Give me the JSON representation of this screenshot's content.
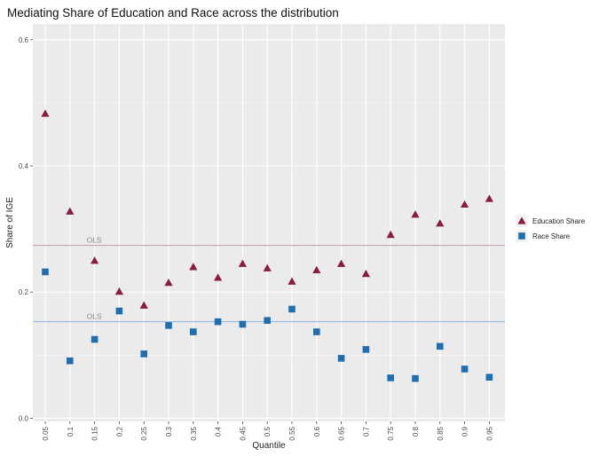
{
  "chart_data": {
    "type": "scatter",
    "title": "Mediating Share of Education and Race across the distribution",
    "xlabel": "Quantile",
    "ylabel": "Share of IGE",
    "ylim": [
      -0.005,
      0.625
    ],
    "yticks": [
      0.0,
      0.2,
      0.4,
      0.6
    ],
    "ytick_labels": [
      "0.0",
      "0.2",
      "0.4",
      "0.6"
    ],
    "categories": [
      "0.05",
      "0.1",
      "0.15",
      "0.2",
      "0.25",
      "0.3",
      "0.35",
      "0.4",
      "0.45",
      "0.5",
      "0.55",
      "0.6",
      "0.65",
      "0.7",
      "0.75",
      "0.8",
      "0.85",
      "0.9",
      "0.95"
    ],
    "grid": true,
    "legend_position": "right",
    "series": [
      {
        "name": "Education Share",
        "marker": "triangle",
        "color": "#8b1a44",
        "values": [
          0.483,
          0.328,
          0.25,
          0.201,
          0.179,
          0.215,
          0.24,
          0.223,
          0.245,
          0.238,
          0.217,
          0.235,
          0.245,
          0.229,
          0.291,
          0.323,
          0.309,
          0.339,
          0.348
        ]
      },
      {
        "name": "Race Share",
        "marker": "square",
        "color": "#1f6fb0",
        "values": [
          0.232,
          0.091,
          0.125,
          0.17,
          0.102,
          0.147,
          0.137,
          0.153,
          0.149,
          0.155,
          0.173,
          0.137,
          0.095,
          0.109,
          0.064,
          0.063,
          0.114,
          0.078,
          0.065
        ]
      }
    ],
    "reference_lines": [
      {
        "label": "OLS",
        "value": 0.274,
        "color": "#c09a9e"
      },
      {
        "label": "OLS",
        "value": 0.153,
        "color": "#8fb3d9"
      }
    ]
  }
}
